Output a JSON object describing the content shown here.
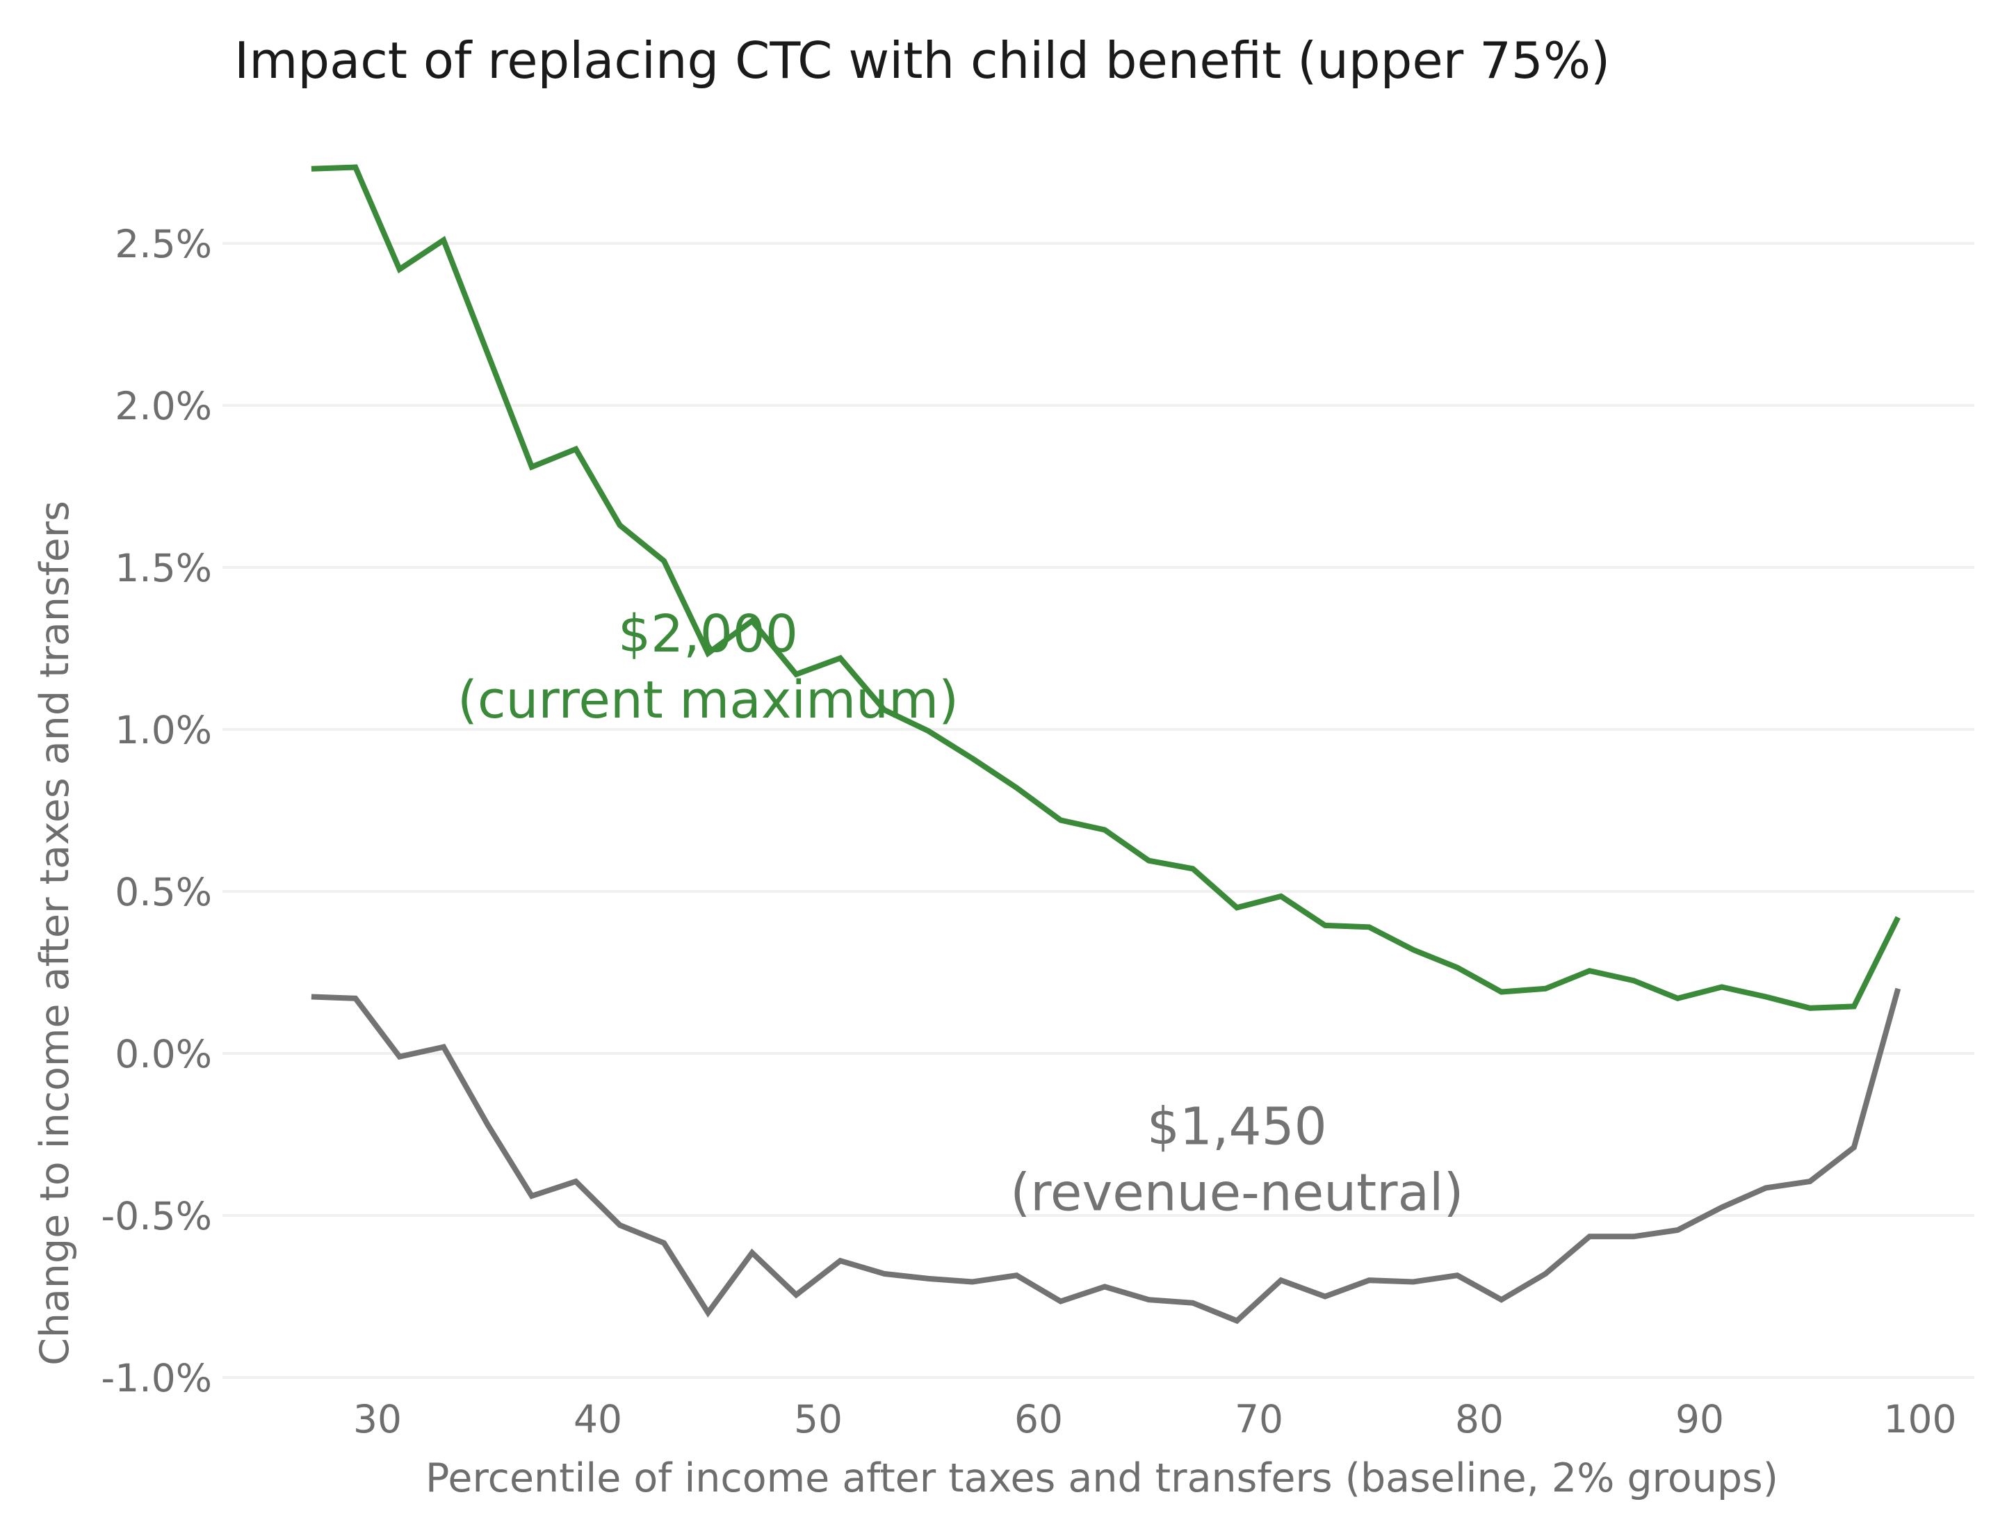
{
  "chart_data": {
    "type": "line",
    "title": "Impact of replacing CTC with child benefit (upper 75%)",
    "xlabel": "Percentile of income after taxes and transfers (baseline, 2% groups)",
    "ylabel": "Change to income after taxes and transfers",
    "xlim": [
      23.5,
      101.5
    ],
    "ylim": [
      -1.0,
      2.75
    ],
    "x_ticks": [
      30,
      40,
      50,
      60,
      70,
      80,
      90,
      100
    ],
    "x_tick_labels": [
      "30",
      "40",
      "50",
      "60",
      "70",
      "80",
      "90",
      "100"
    ],
    "y_ticks": [
      -1.0,
      -0.5,
      0.0,
      0.5,
      1.0,
      1.5,
      2.0,
      2.5
    ],
    "y_tick_labels": [
      "-1.0%",
      "-0.5%",
      "0.0%",
      "0.5%",
      "1.0%",
      "1.5%",
      "2.0%",
      "2.5%"
    ],
    "grid": "horizontal",
    "legend": "none",
    "x": [
      27,
      29,
      31,
      33,
      35,
      37,
      39,
      41,
      43,
      45,
      47,
      49,
      51,
      53,
      55,
      57,
      59,
      61,
      63,
      65,
      67,
      69,
      71,
      73,
      75,
      77,
      79,
      81,
      83,
      85,
      87,
      89,
      91,
      93,
      95,
      97,
      99
    ],
    "series": [
      {
        "name": "$2,000 (current maximum)",
        "color": "#3a8a3a",
        "values": [
          2.73,
          2.735,
          2.42,
          2.51,
          2.16,
          1.81,
          1.865,
          1.63,
          1.52,
          1.235,
          1.335,
          1.17,
          1.22,
          1.06,
          0.995,
          0.91,
          0.82,
          0.72,
          0.69,
          0.595,
          0.57,
          0.45,
          0.485,
          0.395,
          0.39,
          0.32,
          0.265,
          0.19,
          0.2,
          0.255,
          0.225,
          0.17,
          0.205,
          0.175,
          0.14,
          0.145,
          0.42
        ]
      },
      {
        "name": "$1,450 (revenue-neutral)",
        "color": "#737373",
        "values": [
          0.175,
          0.17,
          -0.01,
          0.02,
          -0.22,
          -0.44,
          -0.395,
          -0.53,
          -0.585,
          -0.8,
          -0.615,
          -0.745,
          -0.64,
          -0.68,
          -0.695,
          -0.705,
          -0.685,
          -0.765,
          -0.72,
          -0.76,
          -0.77,
          -0.825,
          -0.7,
          -0.75,
          -0.7,
          -0.705,
          -0.685,
          -0.76,
          -0.68,
          -0.565,
          -0.565,
          -0.545,
          -0.475,
          -0.415,
          -0.395,
          -0.29,
          0.2
        ]
      }
    ],
    "annotations": [
      {
        "lines": [
          "$2,000",
          "(current maximum)"
        ],
        "color": "#3a8a3a",
        "x": 45.0,
        "y": 1.24
      },
      {
        "lines": [
          "$1,450",
          "(revenue-neutral)"
        ],
        "color": "#737373",
        "x": 69.0,
        "y": -0.28
      }
    ]
  },
  "colors": {
    "grid": "#f0f0f0",
    "tick_text": "#6e6e6e",
    "title_text": "#1a1a1a"
  }
}
